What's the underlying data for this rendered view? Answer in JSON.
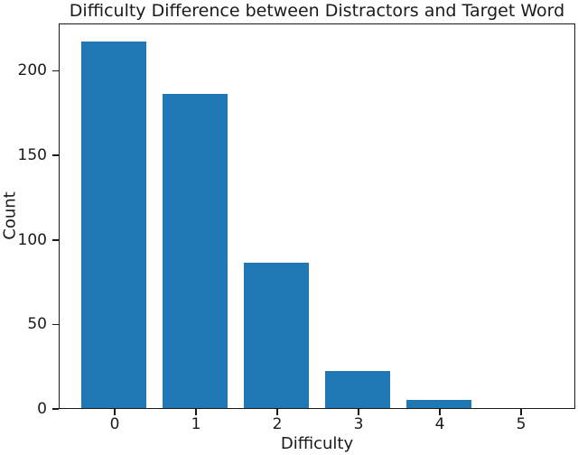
{
  "chart_data": {
    "type": "bar",
    "title": "Difficulty Difference between Distractors and Target Word",
    "xlabel": "Difficulty",
    "ylabel": "Count",
    "categories": [
      "0",
      "1",
      "2",
      "3",
      "4",
      "5"
    ],
    "values": [
      217,
      186,
      86,
      22,
      5,
      0
    ],
    "yticks": [
      0,
      50,
      100,
      150,
      200
    ],
    "ylim": [
      0,
      228
    ],
    "grid": false,
    "legend": "none",
    "bar_color": "#1f77b4",
    "axis_color": "#1a1a1a",
    "background_color": "#ffffff"
  }
}
